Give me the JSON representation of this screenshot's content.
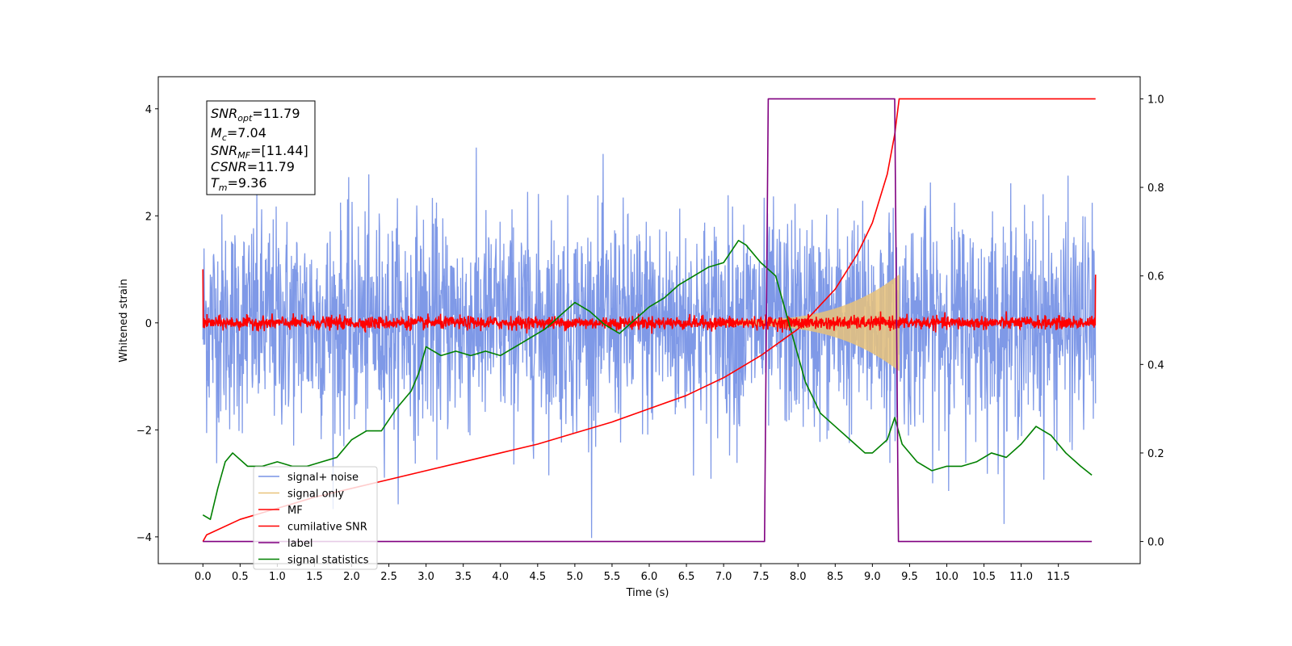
{
  "chart_data": {
    "type": "line",
    "title": "",
    "xlabel": "Time (s)",
    "ylabel": "Whitened strain",
    "xlim": [
      -0.6,
      12.6
    ],
    "ylim": [
      -4.5,
      4.6
    ],
    "y2lim": [
      -0.05,
      1.05
    ],
    "grid": false,
    "xticks": [
      "0.0",
      "0.5",
      "1.0",
      "1.5",
      "2.0",
      "2.5",
      "3.0",
      "3.5",
      "4.0",
      "4.5",
      "5.0",
      "5.5",
      "6.0",
      "6.5",
      "7.0",
      "7.5",
      "8.0",
      "8.5",
      "9.0",
      "9.5",
      "10.0",
      "10.5",
      "11.0",
      "11.5"
    ],
    "yticks": [
      "-4",
      "-2",
      "0",
      "2",
      "4"
    ],
    "y2ticks": [
      "0.0",
      "0.2",
      "0.4",
      "0.6",
      "0.8",
      "1.0"
    ],
    "stats_box": {
      "snr_opt_base": "SNR",
      "snr_opt_sub": "opt",
      "snr_opt_value": "=11.79",
      "mc_base": "M",
      "mc_sub": "c",
      "mc_value": "=7.04",
      "snr_mf_base": "SNR",
      "snr_mf_sub": "MF",
      "snr_mf_value": "=[11.44]",
      "csnr_base": "CSNR",
      "csnr_value": "=11.79",
      "tm_base": "T",
      "tm_sub": "m",
      "tm_value": "=9.36"
    },
    "legend_position": "lower-left",
    "series": [
      {
        "name": "signal+ noise",
        "color": "#7893e6",
        "axis": "left",
        "kind": "noise",
        "x_range": [
          0.0,
          12.0
        ],
        "std": 1.0
      },
      {
        "name": "signal only",
        "color": "#e8c27a",
        "axis": "left",
        "kind": "chirp_envelope",
        "x_range": [
          7.0,
          9.36
        ],
        "amplitude_start": 0.05,
        "amplitude_end": 0.9
      },
      {
        "name": "MF",
        "color": "#ff0000",
        "axis": "left",
        "kind": "noise",
        "x_range": [
          0.0,
          12.0
        ],
        "std": 0.06
      },
      {
        "name": "cumilative SNR",
        "color": "#ff0000",
        "axis": "right",
        "x": [
          0.0,
          0.05,
          0.5,
          1.0,
          1.5,
          2.0,
          2.5,
          3.0,
          3.5,
          4.0,
          4.5,
          5.0,
          5.5,
          6.0,
          6.5,
          7.0,
          7.5,
          8.0,
          8.5,
          8.8,
          9.0,
          9.2,
          9.3,
          9.36,
          12.0
        ],
        "y": [
          0.0,
          0.015,
          0.05,
          0.075,
          0.1,
          0.12,
          0.14,
          0.16,
          0.18,
          0.2,
          0.22,
          0.245,
          0.27,
          0.3,
          0.33,
          0.37,
          0.42,
          0.48,
          0.57,
          0.65,
          0.72,
          0.83,
          0.92,
          1.0,
          1.0
        ]
      },
      {
        "name": "label",
        "color": "#800080",
        "axis": "right",
        "x": [
          0.0,
          7.55,
          7.6,
          9.3,
          9.35,
          11.95
        ],
        "y": [
          0.0,
          0.0,
          1.0,
          1.0,
          0.0,
          0.0
        ]
      },
      {
        "name": "signal statistics",
        "color": "#008000",
        "axis": "right",
        "x": [
          0.0,
          0.1,
          0.2,
          0.3,
          0.4,
          0.6,
          0.8,
          1.0,
          1.2,
          1.4,
          1.6,
          1.8,
          2.0,
          2.2,
          2.4,
          2.6,
          2.8,
          2.9,
          3.0,
          3.2,
          3.4,
          3.6,
          3.8,
          4.0,
          4.2,
          4.4,
          4.6,
          4.8,
          5.0,
          5.2,
          5.4,
          5.6,
          5.8,
          6.0,
          6.2,
          6.4,
          6.6,
          6.8,
          7.0,
          7.2,
          7.3,
          7.5,
          7.7,
          7.9,
          8.0,
          8.1,
          8.3,
          8.5,
          8.7,
          8.9,
          9.0,
          9.2,
          9.3,
          9.4,
          9.6,
          9.8,
          10.0,
          10.2,
          10.4,
          10.6,
          10.8,
          11.0,
          11.2,
          11.4,
          11.6,
          11.8,
          11.95
        ],
        "y": [
          0.06,
          0.05,
          0.12,
          0.18,
          0.2,
          0.17,
          0.17,
          0.18,
          0.17,
          0.17,
          0.18,
          0.19,
          0.23,
          0.25,
          0.25,
          0.3,
          0.34,
          0.38,
          0.44,
          0.42,
          0.43,
          0.42,
          0.43,
          0.42,
          0.44,
          0.46,
          0.48,
          0.51,
          0.54,
          0.52,
          0.49,
          0.47,
          0.5,
          0.53,
          0.55,
          0.58,
          0.6,
          0.62,
          0.63,
          0.68,
          0.67,
          0.63,
          0.6,
          0.48,
          0.42,
          0.36,
          0.29,
          0.26,
          0.23,
          0.2,
          0.2,
          0.23,
          0.28,
          0.22,
          0.18,
          0.16,
          0.17,
          0.17,
          0.18,
          0.2,
          0.19,
          0.22,
          0.26,
          0.24,
          0.2,
          0.17,
          0.15
        ]
      }
    ]
  }
}
